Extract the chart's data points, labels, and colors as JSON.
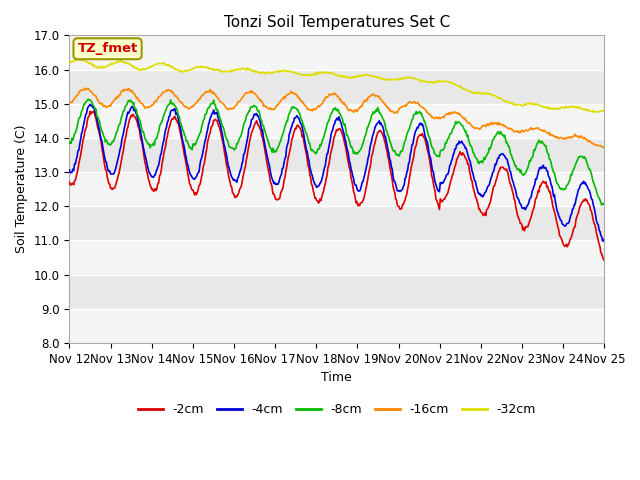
{
  "title": "Tonzi Soil Temperatures Set C",
  "xlabel": "Time",
  "ylabel": "Soil Temperature (C)",
  "ylim": [
    8.0,
    17.0
  ],
  "yticks": [
    8.0,
    9.0,
    10.0,
    11.0,
    12.0,
    13.0,
    14.0,
    15.0,
    16.0,
    17.0
  ],
  "x_labels": [
    "Nov 12",
    "Nov 13",
    "Nov 14",
    "Nov 15",
    "Nov 16",
    "Nov 17",
    "Nov 18",
    "Nov 19",
    "Nov 20",
    "Nov 21",
    "Nov 22",
    "Nov 23",
    "Nov 24",
    "Nov 25"
  ],
  "annotation_text": "TZ_fmet",
  "annotation_color": "#cc0000",
  "annotation_bg": "#ffffcc",
  "annotation_border": "#999900",
  "legend_entries": [
    "-2cm",
    "-4cm",
    "-8cm",
    "-16cm",
    "-32cm"
  ],
  "line_colors": [
    "#dd0000",
    "#0000dd",
    "#00bb00",
    "#ff8800",
    "#dddd00"
  ],
  "line_width": 1.2,
  "bg_stripe_light": "#f5f5f5",
  "bg_stripe_dark": "#e8e8e8",
  "grid_color": "#ffffff",
  "title_fontsize": 11,
  "axis_fontsize": 9,
  "tick_fontsize": 8.5,
  "legend_fontsize": 9
}
